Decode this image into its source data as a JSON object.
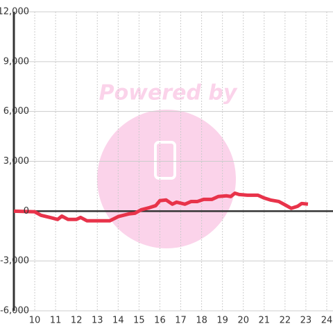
{
  "chart_data": {
    "type": "line",
    "watermark": "Powered by",
    "x": [
      9.0,
      10.0,
      10.3,
      10.8,
      11.1,
      11.3,
      11.6,
      12.0,
      12.2,
      12.5,
      13.6,
      14.0,
      14.5,
      14.8,
      15.1,
      15.5,
      15.8,
      16.0,
      16.3,
      16.6,
      16.8,
      17.2,
      17.5,
      17.8,
      18.1,
      18.5,
      18.8,
      19.2,
      19.4,
      19.6,
      19.8,
      20.2,
      20.7,
      21.0,
      21.3,
      21.7,
      22.0,
      22.3,
      22.6,
      22.8,
      23.1
    ],
    "series": [
      {
        "color": "#e8334a",
        "values": [
          0,
          -40,
          -250,
          -400,
          -500,
          -300,
          -500,
          -500,
          -380,
          -580,
          -580,
          -330,
          -170,
          -130,
          80,
          210,
          330,
          630,
          670,
          420,
          540,
          420,
          580,
          580,
          710,
          710,
          880,
          920,
          880,
          1080,
          1000,
          960,
          960,
          790,
          670,
          580,
          380,
          170,
          290,
          460,
          420
        ]
      }
    ],
    "xlim": [
      9,
      24.3
    ],
    "xticks": [
      10,
      11,
      12,
      13,
      14,
      15,
      16,
      17,
      18,
      19,
      20,
      21,
      22,
      23,
      24
    ],
    "ylim": [
      -6000,
      12000
    ],
    "yticks": [
      {
        "value": -6000,
        "label": "-6,000"
      },
      {
        "value": -3000,
        "label": "-3,000"
      },
      0,
      {
        "value": 3000,
        "label": "3,000"
      },
      {
        "value": 6000,
        "label": "6,000"
      },
      {
        "value": 9000,
        "label": "9,000"
      },
      {
        "value": 12000,
        "label": "12,000"
      }
    ],
    "grid": true
  }
}
